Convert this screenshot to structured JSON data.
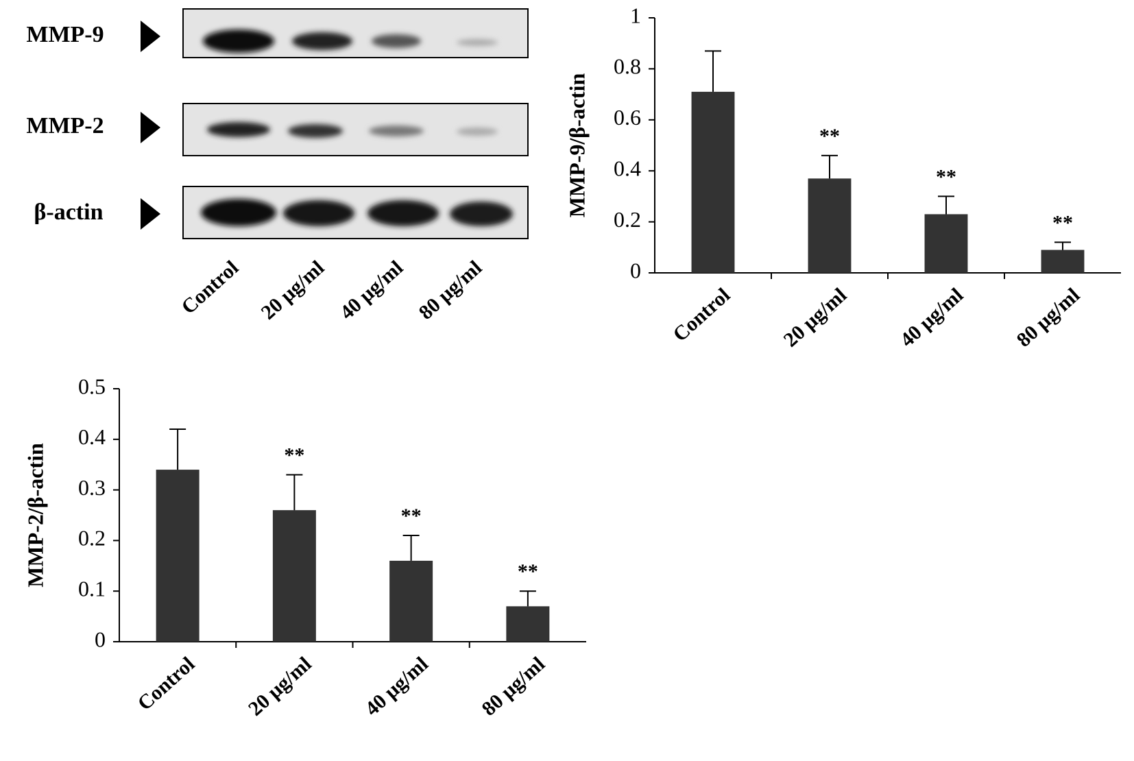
{
  "blot": {
    "labels": [
      "MMP-9",
      "MMP-2",
      "β-actin"
    ],
    "lanes": [
      "Control",
      "20 μg/ml",
      "40 μg/ml",
      "80 μg/ml"
    ]
  },
  "chart_data": [
    {
      "type": "bar",
      "ylabel": "MMP-9/β-actin",
      "categories": [
        "Control",
        "20 μg/ml",
        "40 μg/ml",
        "80 μg/ml"
      ],
      "values": [
        0.71,
        0.37,
        0.23,
        0.09
      ],
      "errors": [
        0.16,
        0.09,
        0.07,
        0.03
      ],
      "annotations": [
        null,
        "**",
        "**",
        "**"
      ],
      "color": "#333333",
      "ylim": [
        0,
        1
      ],
      "yticks": [
        0,
        0.2,
        0.4,
        0.6,
        0.8,
        1
      ]
    },
    {
      "type": "bar",
      "ylabel": "MMP-2/β-actin",
      "categories": [
        "Control",
        "20 μg/ml",
        "40 μg/ml",
        "80 μg/ml"
      ],
      "values": [
        0.34,
        0.26,
        0.16,
        0.07
      ],
      "errors": [
        0.08,
        0.07,
        0.05,
        0.03
      ],
      "annotations": [
        null,
        "**",
        "**",
        "**"
      ],
      "color": "#333333",
      "ylim": [
        0,
        0.5
      ],
      "yticks": [
        0,
        0.1,
        0.2,
        0.3,
        0.4,
        0.5
      ]
    }
  ]
}
